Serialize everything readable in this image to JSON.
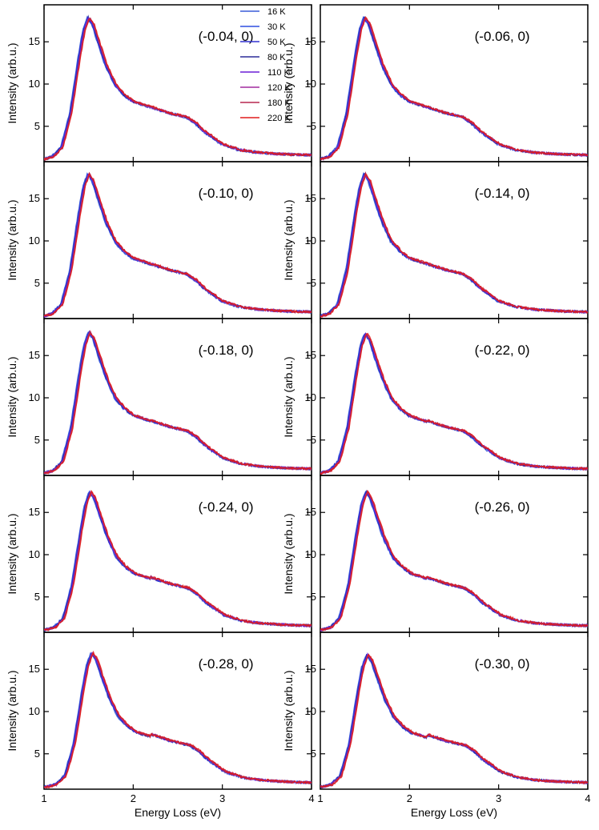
{
  "chart_data": {
    "type": "line",
    "layout": "5 rows x 2 columns grid of panels sharing axes",
    "xlabel": "Energy Loss (eV)",
    "ylabel": "Intensity (arb.u.)",
    "xlim": [
      1,
      4
    ],
    "ylim": [
      1,
      19
    ],
    "xticks": [
      1,
      2,
      3,
      4
    ],
    "yticks": [
      5,
      10,
      15
    ],
    "temperatures": [
      "16 K",
      "30 K",
      "50 K",
      "80 K",
      "110 K",
      "120 K",
      "180 K",
      "220 K"
    ],
    "series_colors": [
      "#3a5bd9",
      "#2f4fe0",
      "#3030d0",
      "#2b2b99",
      "#6a1fd6",
      "#a02a9e",
      "#b5264f",
      "#e01b1b"
    ],
    "legend_location": "top-right of first panel",
    "panels": [
      {
        "label": "(-0.04, 0)",
        "peak": 18.0,
        "peak_x": 1.5
      },
      {
        "label": "(-0.06, 0)",
        "peak": 18.0,
        "peak_x": 1.5
      },
      {
        "label": "(-0.10, 0)",
        "peak": 18.0,
        "peak_x": 1.5
      },
      {
        "label": "(-0.14, 0)",
        "peak": 18.0,
        "peak_x": 1.5
      },
      {
        "label": "(-0.18, 0)",
        "peak": 17.8,
        "peak_x": 1.51
      },
      {
        "label": "(-0.22, 0)",
        "peak": 17.6,
        "peak_x": 1.51
      },
      {
        "label": "(-0.24, 0)",
        "peak": 17.4,
        "peak_x": 1.52
      },
      {
        "label": "(-0.26, 0)",
        "peak": 17.4,
        "peak_x": 1.52
      },
      {
        "label": "(-0.28, 0)",
        "peak": 16.8,
        "peak_x": 1.54
      },
      {
        "label": "(-0.30, 0)",
        "peak": 16.6,
        "peak_x": 1.53
      }
    ],
    "curve_shape": {
      "x": [
        1.0,
        1.1,
        1.2,
        1.3,
        1.4,
        1.45,
        1.5,
        1.55,
        1.6,
        1.7,
        1.8,
        1.9,
        2.0,
        2.2,
        2.4,
        2.6,
        2.7,
        2.8,
        3.0,
        3.2,
        3.4,
        3.6,
        3.8,
        4.0
      ],
      "y": [
        1.1,
        1.4,
        2.5,
        6.5,
        13.5,
        16.5,
        18.0,
        17.2,
        15.5,
        12.3,
        10.0,
        8.8,
        8.0,
        7.3,
        6.6,
        6.1,
        5.4,
        4.4,
        2.9,
        2.2,
        1.9,
        1.75,
        1.65,
        1.6
      ]
    }
  }
}
